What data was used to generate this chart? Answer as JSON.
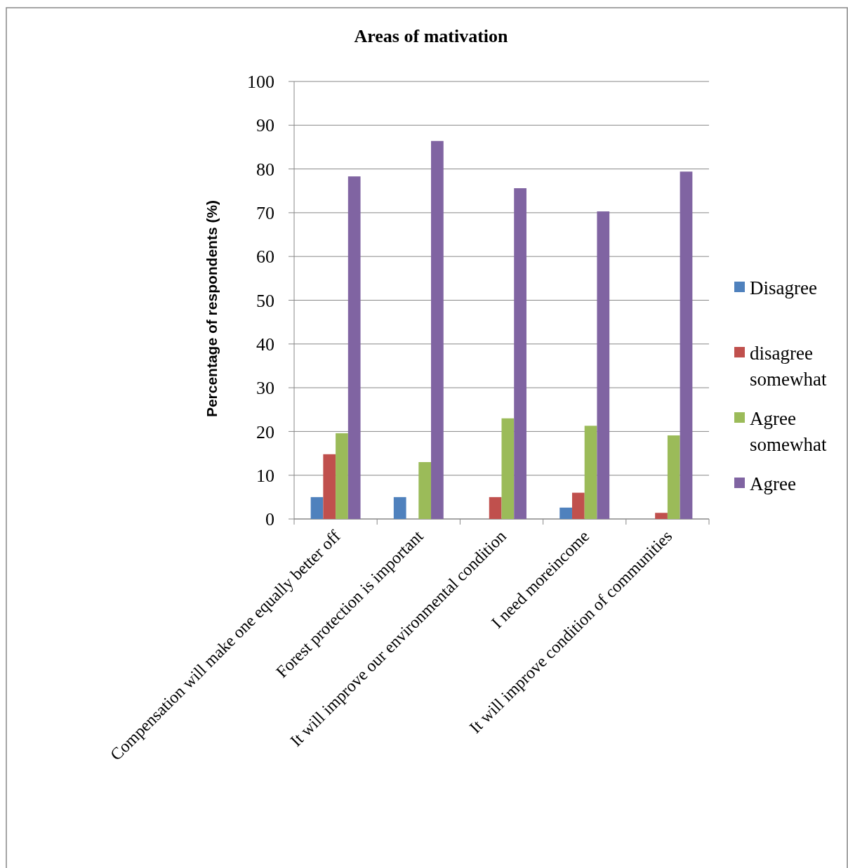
{
  "chart_data": {
    "type": "bar",
    "title": "Areas of mativation",
    "ylabel": "Percentage of respondents (%)",
    "categories": [
      "Compensation will make one equally better off",
      "Forest protection is important",
      "It will improve our environmental condition",
      "I need moreincome",
      "It will improve condition of communities"
    ],
    "series": [
      {
        "name": "Disagree",
        "color": "#4f81bd",
        "values": [
          5,
          5,
          0,
          2.6,
          0
        ]
      },
      {
        "name": "disagree somewhat",
        "color": "#c0504d",
        "values": [
          14.8,
          0,
          5,
          6,
          1.4
        ]
      },
      {
        "name": "Agree somewhat",
        "color": "#9bbb59",
        "values": [
          19.6,
          13,
          23,
          21.3,
          19.1
        ]
      },
      {
        "name": "Agree",
        "color": "#8064a2",
        "values": [
          78.3,
          86.4,
          75.6,
          70.3,
          79.4
        ]
      }
    ],
    "ylim": [
      0,
      100
    ],
    "yticks": [
      0,
      10,
      20,
      30,
      40,
      50,
      60,
      70,
      80,
      90,
      100
    ],
    "grid": "y",
    "legend": "right"
  }
}
